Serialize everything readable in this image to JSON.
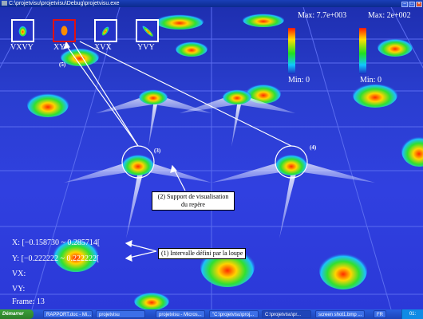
{
  "window": {
    "title": "C:\\projetvisu\\projetvisu\\Debug\\projetvisu.exe"
  },
  "thumbnails": [
    {
      "label": "VXVY",
      "selected": false
    },
    {
      "label": "XY",
      "selected": true
    },
    {
      "label": "XVX",
      "selected": false
    },
    {
      "label": "YVY",
      "selected": false
    }
  ],
  "colorbars": [
    {
      "max_label": "Max: 7.7e+003",
      "min_label": "Min: 0"
    },
    {
      "max_label": "Max: 2e+002",
      "min_label": "Min: 0"
    }
  ],
  "readouts": {
    "x": "X:  [−0.158730 ~ 0.285714[",
    "y": "Y:  [−0.222222 ~ 0.222222[",
    "vx": "VX:",
    "vy": "VY:",
    "frame": "Frame: 13"
  },
  "callouts": {
    "support": "(2) Support de visualisation du repère",
    "interval": "(1) Intervalle défini par la loupe"
  },
  "markers": {
    "m3": "(3)",
    "m4": "(4)",
    "m5": "(5)"
  },
  "taskbar": {
    "start_label": "Démarrer",
    "items": [
      {
        "label": "RAPPORT.doc - Mi...",
        "active": false
      },
      {
        "label": "projetvisu",
        "active": false
      },
      {
        "label": "projetvisu - Micros...",
        "active": false
      },
      {
        "label": "\"C:\\projetvisu\\proj...",
        "active": false
      },
      {
        "label": "C:\\projetvisu\\pr...",
        "active": true
      },
      {
        "label": "screen shot1.bmp ...",
        "active": false
      }
    ],
    "tray_text": "FR",
    "clock": "01:"
  },
  "colors": {
    "background": "#2a3ed0",
    "selected_border": "#e01010",
    "thumb_border": "#ffffff"
  }
}
